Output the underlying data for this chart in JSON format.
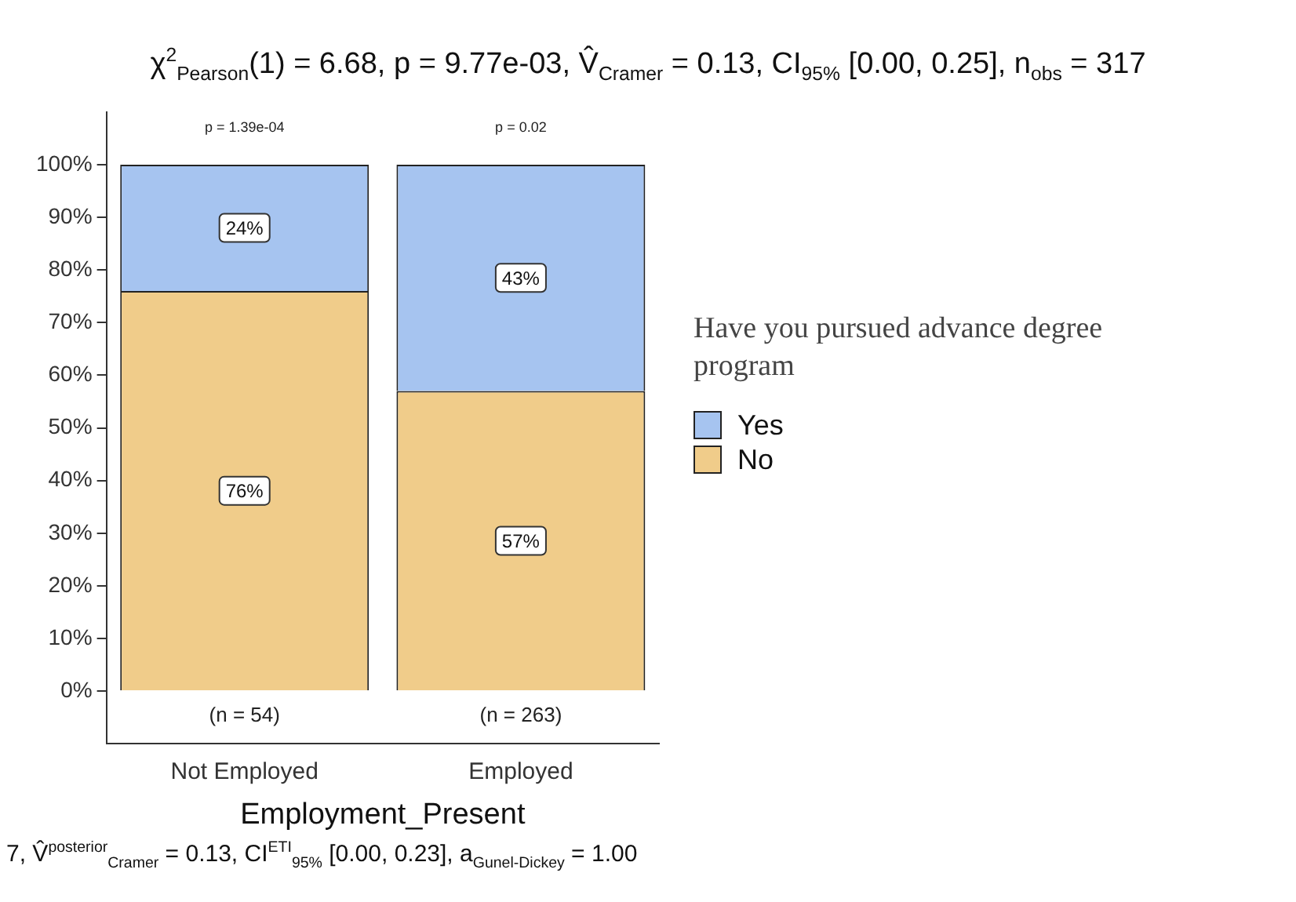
{
  "chart_data": {
    "type": "bar",
    "stacked": true,
    "title": "χ$^{2}$$_{Pearson}$(1) = 6.68, p = 9.77e-03, V̂$_{Cramer}$ = 0.13, CI$_{95%}$ [0.00, 0.25], n$_{obs}$ = 317",
    "xlabel": "Employment_Present",
    "legend_title": "Have you pursued advance degree program",
    "legend": "right",
    "categories": [
      "Not Employed",
      "Employed"
    ],
    "series": [
      {
        "name": "No",
        "color": "#f0cc8a",
        "values": [
          76,
          57
        ],
        "value_labels": [
          "76%",
          "57%"
        ]
      },
      {
        "name": "Yes",
        "color": "#a6c4f0",
        "values": [
          24,
          43
        ],
        "value_labels": [
          "24%",
          "43%"
        ]
      }
    ],
    "ylim": [
      -10,
      110
    ],
    "yticks": [
      {
        "value": 0,
        "label": "0%"
      },
      {
        "value": 10,
        "label": "10%"
      },
      {
        "value": 20,
        "label": "20%"
      },
      {
        "value": 30,
        "label": "30%"
      },
      {
        "value": 40,
        "label": "40%"
      },
      {
        "value": 50,
        "label": "50%"
      },
      {
        "value": 60,
        "label": "60%"
      },
      {
        "value": 70,
        "label": "70%"
      },
      {
        "value": 80,
        "label": "80%"
      },
      {
        "value": 90,
        "label": "90%"
      },
      {
        "value": 100,
        "label": "100%"
      }
    ],
    "grid": false,
    "annotations": [
      "p = 1.39e-04",
      "p = 0.02",
      "(n = 54)",
      "(n = 263)",
      "7, V̂$^{posterior}$$_{Cramer}$ = 0.13, CI$^{ETI}$$_{95%}$ [0.00, 0.23], a$_{Gunel-Dickey}$ = 1.00"
    ]
  }
}
